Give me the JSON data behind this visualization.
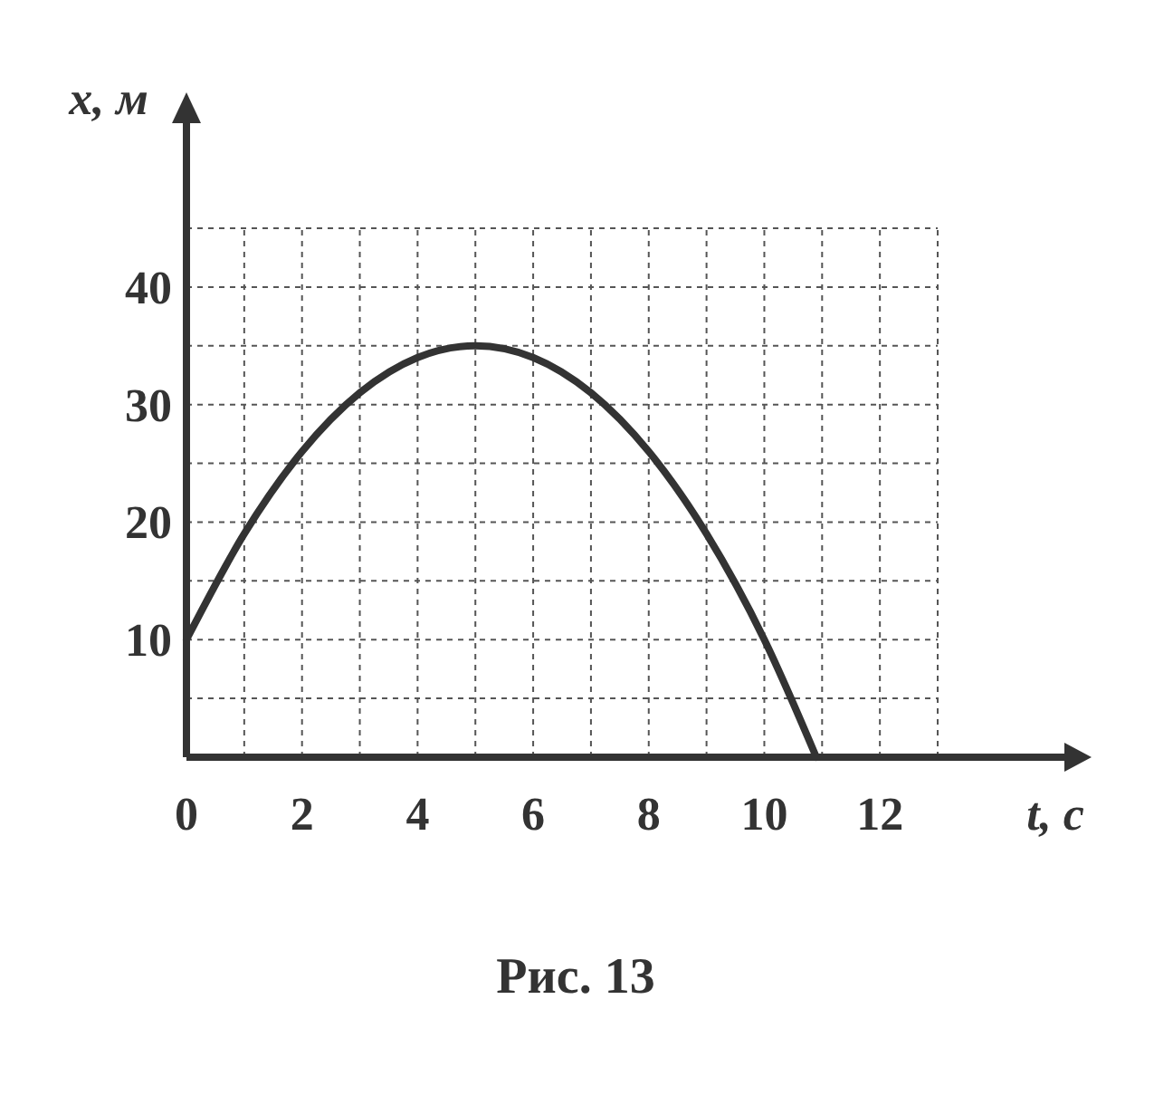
{
  "chart_data": {
    "type": "line",
    "xlabel": "t, с",
    "ylabel": "x, м",
    "annotations": [
      "Рис. 13"
    ],
    "x": [
      0,
      1,
      2,
      3,
      4,
      5,
      6,
      7,
      8,
      9,
      10,
      10.9
    ],
    "series": [
      {
        "color": "#333333",
        "values": [
          10,
          19,
          26,
          31,
          34,
          35,
          34,
          31,
          26,
          19,
          10,
          0
        ]
      }
    ],
    "xlim": [
      0,
      13
    ],
    "ylim": [
      0,
      45
    ],
    "xticks": [
      {
        "value": 0,
        "label": "0"
      },
      {
        "value": 1,
        "label": null
      },
      {
        "value": 2,
        "label": "2"
      },
      {
        "value": 3,
        "label": null
      },
      {
        "value": 4,
        "label": "4"
      },
      {
        "value": 5,
        "label": null
      },
      {
        "value": 6,
        "label": "6"
      },
      {
        "value": 7,
        "label": null
      },
      {
        "value": 8,
        "label": "8"
      },
      {
        "value": 9,
        "label": null
      },
      {
        "value": 10,
        "label": "10"
      },
      {
        "value": 11,
        "label": null
      },
      {
        "value": 12,
        "label": "12"
      },
      {
        "value": 13,
        "label": null
      }
    ],
    "yticks": [
      {
        "value": 0,
        "label": null
      },
      {
        "value": 5,
        "label": null
      },
      {
        "value": 10,
        "label": "10"
      },
      {
        "value": 15,
        "label": null
      },
      {
        "value": 20,
        "label": "20"
      },
      {
        "value": 25,
        "label": null
      },
      {
        "value": 30,
        "label": "30"
      },
      {
        "value": 35,
        "label": null
      },
      {
        "value": 40,
        "label": "40"
      },
      {
        "value": 45,
        "label": null
      }
    ],
    "grid": true,
    "marker": "none",
    "line_style": "solid"
  }
}
